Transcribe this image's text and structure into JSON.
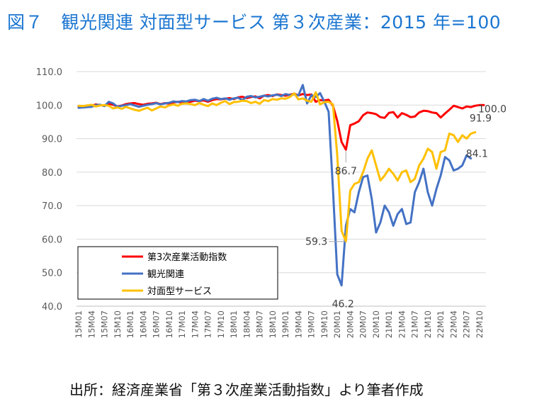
{
  "title": "図７　観光関連 対面型サービス 第３次産業：2015 年=100",
  "source": "出所：経済産業省「第３次産業活動指数」より筆者作成",
  "chart_data": {
    "type": "line",
    "ylim": [
      40,
      110
    ],
    "yticks": [
      "110.0",
      "100.0",
      "90.0",
      "80.0",
      "70.0",
      "60.0",
      "50.0",
      "40.0"
    ],
    "ytick_values": [
      110,
      100,
      90,
      80,
      70,
      60,
      50,
      40
    ],
    "xtick_labels": [
      "15M01",
      "15M04",
      "15M07",
      "15M10",
      "16M01",
      "16M04",
      "16M07",
      "16M10",
      "17M01",
      "17M04",
      "17M07",
      "17M10",
      "18M01",
      "18M04",
      "18M07",
      "18M10",
      "19M01",
      "19M04",
      "19M07",
      "19M10",
      "20M01",
      "20M04",
      "20M07",
      "20M10",
      "21M01",
      "21M04",
      "21M07",
      "21M10",
      "22M01",
      "22M04",
      "22M07",
      "22M10"
    ],
    "grid": "horizontal",
    "legend_position": "lower-left",
    "series": [
      {
        "name": "第3次産業活動指数",
        "color": "#ff0000",
        "values": [
          99.5,
          99.6,
          99.9,
          99.7,
          100.2,
          100.0,
          99.8,
          100.4,
          100.1,
          99.6,
          99.9,
          100.3,
          100.5,
          100.6,
          100.3,
          100.1,
          100.4,
          100.5,
          100.7,
          100.3,
          100.6,
          100.4,
          100.8,
          101.0,
          100.7,
          101.1,
          101.0,
          101.3,
          101.2,
          101.4,
          101.0,
          101.5,
          101.8,
          101.7,
          101.9,
          102.1,
          101.8,
          102.3,
          102.5,
          102.1,
          102.4,
          102.6,
          102.0,
          102.8,
          103.0,
          102.7,
          103.2,
          103.0,
          102.8,
          103.1,
          103.4,
          102.9,
          103.3,
          103.0,
          103.2,
          101.0,
          101.5,
          101.4,
          101.6,
          99.8,
          95.3,
          89.0,
          86.7,
          94.0,
          94.5,
          95.2,
          97.0,
          97.8,
          97.6,
          97.3,
          96.4,
          96.2,
          97.7,
          97.9,
          96.3,
          97.6,
          97.1,
          96.4,
          96.6,
          97.8,
          98.3,
          98.2,
          97.8,
          97.6,
          96.3,
          97.5,
          98.6,
          99.8,
          99.4,
          99.0,
          99.6,
          99.4,
          99.8,
          100.0,
          100.0
        ]
      },
      {
        "name": "観光関連",
        "color": "#4472c4",
        "values": [
          99.2,
          99.3,
          99.4,
          99.5,
          100.0,
          100.1,
          99.7,
          101.0,
          100.5,
          99.5,
          99.8,
          100.0,
          100.3,
          99.9,
          99.5,
          99.8,
          100.1,
          100.3,
          100.6,
          100.2,
          100.5,
          100.7,
          101.1,
          100.9,
          101.2,
          101.1,
          101.5,
          101.6,
          101.2,
          101.8,
          101.3,
          101.9,
          102.2,
          101.8,
          102.0,
          101.6,
          102.0,
          102.2,
          101.5,
          102.5,
          102.7,
          102.3,
          102.5,
          102.8,
          102.6,
          102.9,
          103.1,
          102.7,
          103.3,
          103.0,
          103.2,
          102.9,
          106.0,
          100.5,
          103.0,
          102.4,
          103.6,
          101.0,
          98.0,
          75.0,
          49.5,
          46.2,
          64.0,
          69.0,
          68.0,
          74.0,
          78.5,
          79.0,
          72.0,
          62.0,
          65.0,
          70.0,
          68.0,
          64.0,
          67.5,
          69.0,
          64.5,
          65.0,
          74.0,
          77.0,
          81.0,
          74.0,
          70.0,
          75.0,
          79.0,
          84.5,
          83.5,
          80.5,
          81.0,
          82.0,
          85.0,
          84.1
        ]
      },
      {
        "name": "対面型サービス",
        "color": "#ffc000",
        "values": [
          99.8,
          99.7,
          99.9,
          100.1,
          99.6,
          99.9,
          100.0,
          99.8,
          99.0,
          99.3,
          98.9,
          99.5,
          99.0,
          98.6,
          98.3,
          98.8,
          99.2,
          98.4,
          99.0,
          99.6,
          99.3,
          99.9,
          100.2,
          99.8,
          100.4,
          100.5,
          100.3,
          100.0,
          100.6,
          100.1,
          99.7,
          100.5,
          100.0,
          100.7,
          101.2,
          100.3,
          100.9,
          101.0,
          101.3,
          101.2,
          100.6,
          101.0,
          100.4,
          101.5,
          101.2,
          101.8,
          101.6,
          102.0,
          101.9,
          102.4,
          103.5,
          101.7,
          102.0,
          101.3,
          101.0,
          103.8,
          100.2,
          100.9,
          101.0,
          100.2,
          85.0,
          62.5,
          59.3,
          74.5,
          76.5,
          77.0,
          80.0,
          84.0,
          86.5,
          82.0,
          77.5,
          79.0,
          81.0,
          79.5,
          77.5,
          80.0,
          80.5,
          77.0,
          78.0,
          82.0,
          84.0,
          87.0,
          86.0,
          81.0,
          86.0,
          86.5,
          91.5,
          91.0,
          89.0,
          91.0,
          90.0,
          91.5,
          91.9
        ]
      }
    ],
    "annotations": [
      {
        "text": "100.0",
        "series": 0,
        "index": 94
      },
      {
        "text": "91.9",
        "series": 2,
        "index": 92
      },
      {
        "text": "84.1",
        "series": 1,
        "index": 91
      },
      {
        "text": "86.7",
        "series": 0,
        "index": 62
      },
      {
        "text": "59.3",
        "series": 2,
        "index": 62
      },
      {
        "text": "46.2",
        "series": 1,
        "index": 61
      }
    ]
  }
}
